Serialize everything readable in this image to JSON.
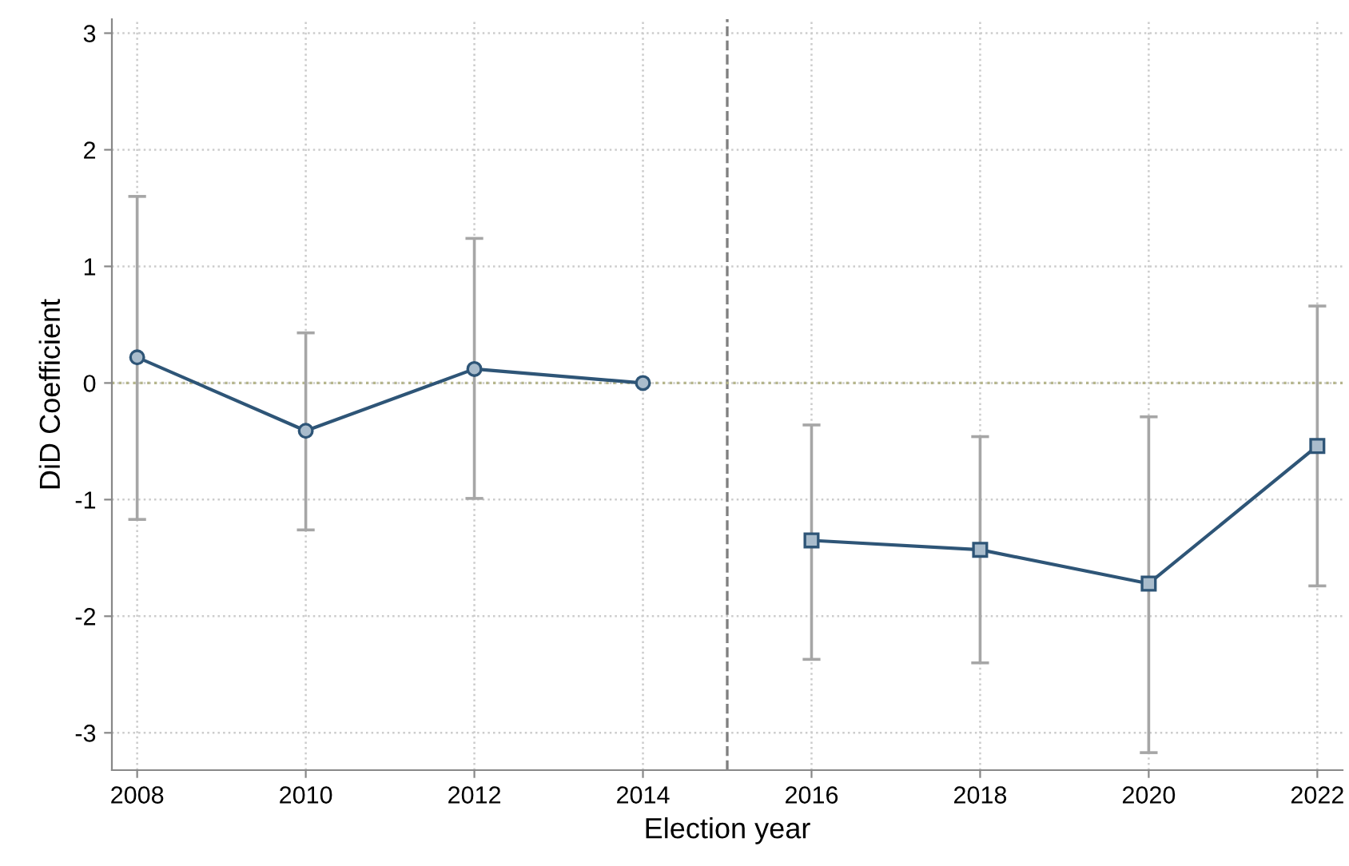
{
  "chart_data": {
    "type": "line",
    "xlabel": "Election year",
    "ylabel": "DiD Coefficient",
    "series": [
      {
        "x": [
          2008,
          2010,
          2012,
          2014
        ],
        "values": [
          0.22,
          -0.41,
          0.12,
          0
        ],
        "errors": [
          [
            -1.17,
            1.6
          ],
          [
            -1.26,
            0.43
          ],
          [
            -0.99,
            1.24
          ],
          null
        ],
        "color": "#2e5577",
        "marker": "circle"
      },
      {
        "x": [
          2016,
          2018,
          2020,
          2022
        ],
        "values": [
          -1.35,
          -1.43,
          -1.72,
          -0.54
        ],
        "errors": [
          [
            -2.37,
            -0.36
          ],
          [
            -2.4,
            -0.46
          ],
          [
            -3.17,
            -0.29
          ],
          [
            -1.74,
            0.66
          ]
        ],
        "color": "#2e5577",
        "marker": "square"
      }
    ],
    "xlim": [
      2007.7,
      2022.3
    ],
    "xticks": [
      2008,
      2010,
      2012,
      2014,
      2016,
      2018,
      2020,
      2022
    ],
    "ylim": [
      -3.32,
      3.12
    ],
    "yticks": [
      -3,
      -2,
      -1,
      0,
      1,
      2,
      3
    ],
    "ref_lines": [
      {
        "axis": "x",
        "value": 2015,
        "color": "#808080",
        "line_style": "dashed"
      },
      {
        "axis": "y",
        "value": 0,
        "color": "#b5b58c",
        "line_style": "dotted"
      }
    ],
    "grid": true,
    "line_style": "solid"
  }
}
